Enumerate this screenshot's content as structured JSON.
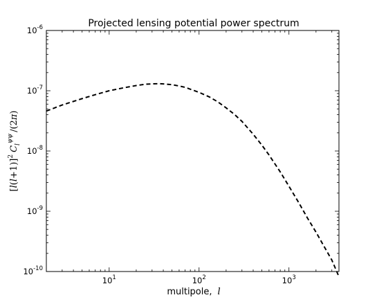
{
  "chart_data": {
    "type": "line",
    "title": "Projected lensing potential power spectrum",
    "xlabel": "multipole, l",
    "xlabel_text": "multipole,",
    "xlabel_var": "l",
    "ylabel": "[l(l+1)]^2 C_l^{ψψ}/(2π)",
    "xscale": "log",
    "yscale": "log",
    "xlim": [
      2,
      3600
    ],
    "ylim": [
      1e-10,
      1e-06
    ],
    "grid": false,
    "x_ticks": [
      {
        "value": 10,
        "label": "10",
        "exp": "1"
      },
      {
        "value": 100,
        "label": "10",
        "exp": "2"
      },
      {
        "value": 1000,
        "label": "10",
        "exp": "3"
      }
    ],
    "y_ticks": [
      {
        "value": 1e-10,
        "label": "10",
        "exp": "-10"
      },
      {
        "value": 1e-09,
        "label": "10",
        "exp": "-9"
      },
      {
        "value": 1e-08,
        "label": "10",
        "exp": "-8"
      },
      {
        "value": 1e-07,
        "label": "10",
        "exp": "-7"
      },
      {
        "value": 1e-06,
        "label": "10",
        "exp": "-6"
      }
    ],
    "series": [
      {
        "line_style": "dashed",
        "color": "#000000",
        "x": [
          2,
          3,
          5,
          7,
          10,
          15,
          20,
          25,
          30,
          35,
          40,
          50,
          60,
          70,
          80,
          100,
          130,
          160,
          200,
          250,
          300,
          400,
          500,
          600,
          800,
          1000,
          1300,
          1600,
          2000,
          2500,
          3000,
          3600
        ],
        "y": [
          4.6e-08,
          5.8e-08,
          7.4e-08,
          8.6e-08,
          1e-07,
          1.13e-07,
          1.22e-07,
          1.28e-07,
          1.3e-07,
          1.31e-07,
          1.3e-07,
          1.26e-07,
          1.2e-07,
          1.14e-07,
          1.06e-07,
          9.4e-08,
          7.9e-08,
          6.6e-08,
          5.2e-08,
          4e-08,
          3.1e-08,
          1.9e-08,
          1.25e-08,
          8.6e-09,
          4.5e-09,
          2.6e-09,
          1.35e-09,
          7.8e-10,
          4.5e-10,
          2.5e-10,
          1.55e-10,
          8.2e-11
        ]
      }
    ]
  }
}
